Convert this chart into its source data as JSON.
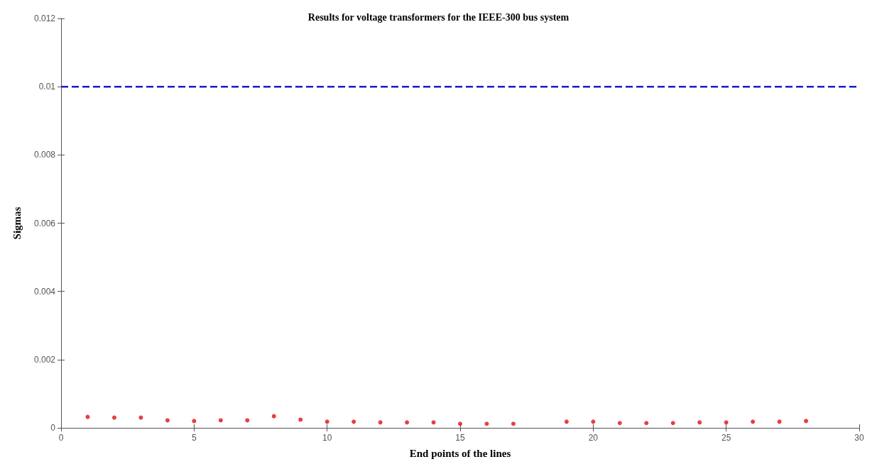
{
  "chart_data": {
    "type": "scatter",
    "title": "Results for voltage transformers for the IEEE-300 bus system",
    "xlabel": "End points of the lines",
    "ylabel": "Sigmas",
    "x": [
      1,
      2,
      3,
      4,
      5,
      6,
      7,
      8,
      9,
      10,
      11,
      12,
      13,
      14,
      15,
      16,
      17,
      19,
      20,
      21,
      22,
      23,
      24,
      25,
      26,
      27,
      28
    ],
    "series": [
      {
        "color": "#e01010",
        "values": [
          0.00032,
          0.0003,
          0.0003,
          0.00022,
          0.0002,
          0.00022,
          0.00022,
          0.00034,
          0.00024,
          0.00018,
          0.00018,
          0.00016,
          0.00016,
          0.00016,
          0.00012,
          0.00012,
          0.00012,
          0.00018,
          0.00018,
          0.00014,
          0.00014,
          0.00014,
          0.00016,
          0.00016,
          0.00018,
          0.00018,
          0.0002
        ]
      }
    ],
    "ref_lines": [
      {
        "axis": "y",
        "value": 0.01,
        "color": "#1020c8",
        "line_style": "dashed"
      }
    ],
    "xlim": [
      0,
      30
    ],
    "xticks": [
      0,
      5,
      10,
      15,
      20,
      25,
      30
    ],
    "ylim": [
      0,
      0.012
    ],
    "yticks": [
      0,
      0.002,
      0.004,
      0.006,
      0.008,
      0.01,
      0.012
    ],
    "marker": "circle",
    "grid": false
  }
}
